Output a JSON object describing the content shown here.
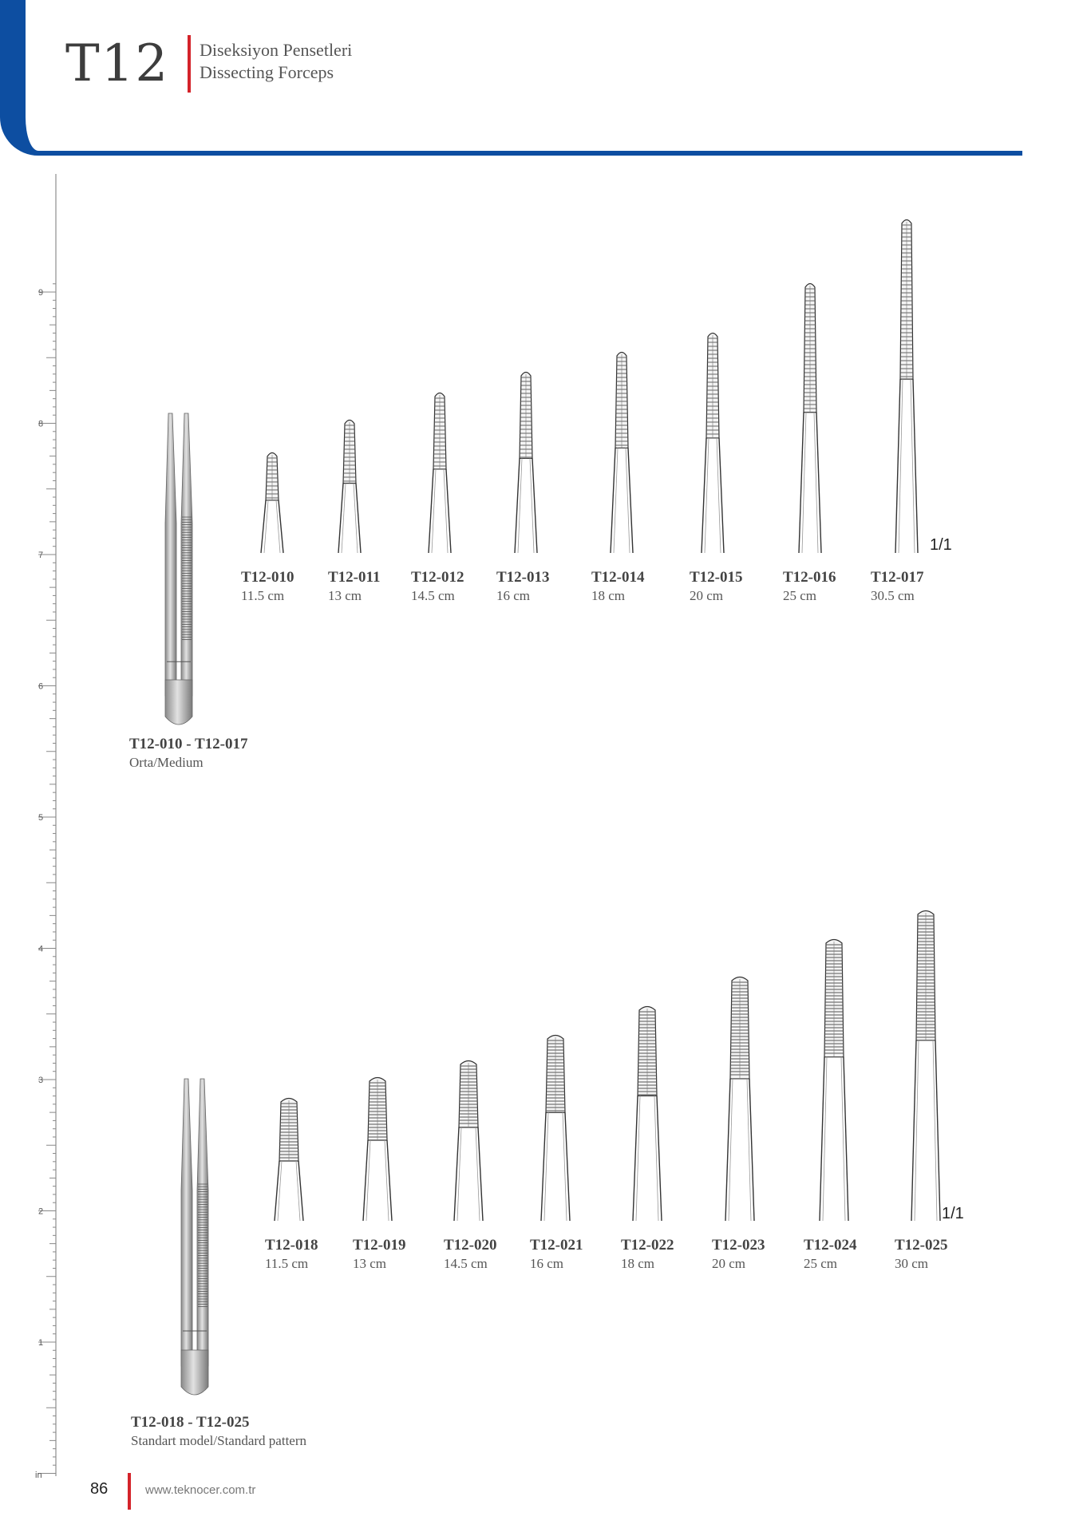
{
  "header": {
    "section_code": "T12",
    "title_tr": "Diseksiyon Pensetleri",
    "title_en": "Dissecting Forceps",
    "accent_color": "#0d4ea1",
    "highlight_color": "#d4232a"
  },
  "ruler": {
    "labels": [
      "9",
      "8",
      "7",
      "6",
      "5",
      "4",
      "3",
      "2",
      "1"
    ],
    "unit": "in"
  },
  "groups": [
    {
      "title": "T12-010 - T12-017",
      "subtitle": "Orta/Medium",
      "scale": "1/1",
      "items": [
        {
          "code": "T12-010",
          "size": "11.5 cm"
        },
        {
          "code": "T12-011",
          "size": "13 cm"
        },
        {
          "code": "T12-012",
          "size": "14.5 cm"
        },
        {
          "code": "T12-013",
          "size": "16 cm"
        },
        {
          "code": "T12-014",
          "size": "18 cm"
        },
        {
          "code": "T12-015",
          "size": "20 cm"
        },
        {
          "code": "T12-016",
          "size": "25 cm"
        },
        {
          "code": "T12-017",
          "size": "30.5 cm"
        }
      ]
    },
    {
      "title": "T12-018 - T12-025",
      "subtitle": "Standart model/Standard pattern",
      "scale": "1/1",
      "items": [
        {
          "code": "T12-018",
          "size": "11.5 cm"
        },
        {
          "code": "T12-019",
          "size": "13 cm"
        },
        {
          "code": "T12-020",
          "size": "14.5 cm"
        },
        {
          "code": "T12-021",
          "size": "16 cm"
        },
        {
          "code": "T12-022",
          "size": "18 cm"
        },
        {
          "code": "T12-023",
          "size": "20 cm"
        },
        {
          "code": "T12-024",
          "size": "25 cm"
        },
        {
          "code": "T12-025",
          "size": "30 cm"
        }
      ]
    }
  ],
  "footer": {
    "page_number": "86",
    "url": "www.teknocer.com.tr"
  }
}
